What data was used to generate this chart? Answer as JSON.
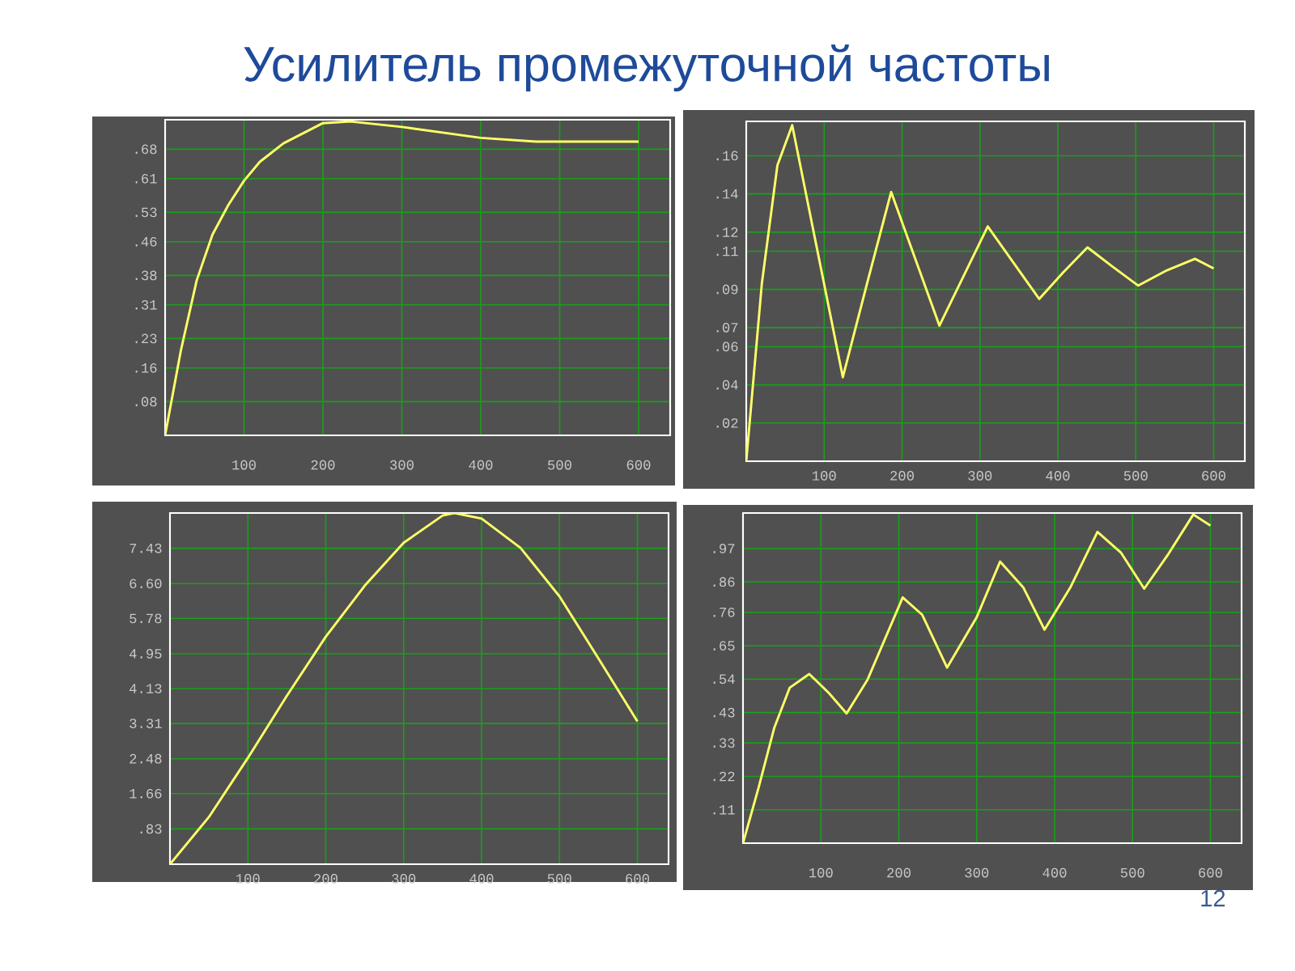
{
  "chart_data": [
    {
      "type": "line",
      "title": "Усилитель промежуточной частоты",
      "color": "#ffff66",
      "grid": true,
      "xlim": [
        0,
        640
      ],
      "ylim": [
        0,
        0.75
      ],
      "xticks": [
        100,
        200,
        300,
        400,
        500,
        600
      ],
      "yticks": [
        {
          "value": 0.08,
          "label": ".08"
        },
        {
          "value": 0.16,
          "label": ".16"
        },
        {
          "value": 0.23,
          "label": ".23"
        },
        {
          "value": 0.31,
          "label": ".31"
        },
        {
          "value": 0.38,
          "label": ".38"
        },
        {
          "value": 0.46,
          "label": ".46"
        },
        {
          "value": 0.53,
          "label": ".53"
        },
        {
          "value": 0.61,
          "label": ".61"
        },
        {
          "value": 0.68,
          "label": ".68"
        }
      ],
      "x": [
        0,
        20,
        40,
        60,
        80,
        100,
        120,
        150,
        200,
        235,
        300,
        400,
        470,
        600
      ],
      "values": [
        0,
        0.202,
        0.368,
        0.477,
        0.547,
        0.605,
        0.65,
        0.694,
        0.742,
        0.746,
        0.733,
        0.707,
        0.698,
        0.698
      ]
    },
    {
      "type": "line",
      "color": "#ffff66",
      "grid": true,
      "xlim": [
        0,
        640
      ],
      "ylim": [
        0,
        0.178
      ],
      "xticks": [
        100,
        200,
        300,
        400,
        500,
        600
      ],
      "yticks": [
        {
          "value": 0.02,
          "label": ".02"
        },
        {
          "value": 0.04,
          "label": ".04"
        },
        {
          "value": 0.06,
          "label": ".06"
        },
        {
          "value": 0.07,
          "label": ".07"
        },
        {
          "value": 0.09,
          "label": ".09"
        },
        {
          "value": 0.11,
          "label": ".11"
        },
        {
          "value": 0.12,
          "label": ".12"
        },
        {
          "value": 0.14,
          "label": ".14"
        },
        {
          "value": 0.16,
          "label": ".16"
        }
      ],
      "x": [
        0,
        20,
        40,
        59,
        90,
        124,
        155,
        186,
        217,
        248,
        279,
        310,
        343,
        376,
        407,
        438,
        470,
        503,
        540,
        576,
        600
      ],
      "values": [
        0,
        0.093,
        0.155,
        0.176,
        0.113,
        0.044,
        0.093,
        0.141,
        0.106,
        0.071,
        0.097,
        0.123,
        0.104,
        0.085,
        0.099,
        0.112,
        0.102,
        0.092,
        0.1,
        0.106,
        0.101
      ]
    },
    {
      "type": "line",
      "color": "#ffff66",
      "grid": true,
      "xlim": [
        0,
        640
      ],
      "ylim": [
        0,
        8.26
      ],
      "xticks": [
        100,
        200,
        300,
        400,
        500,
        600
      ],
      "yticks": [
        {
          "value": 0.83,
          "label": ".83"
        },
        1.66,
        2.48,
        3.31,
        4.13,
        4.95,
        5.78,
        {
          "value": 6.6,
          "label": "6.60"
        },
        7.43
      ],
      "x": [
        0,
        50,
        100,
        150,
        200,
        250,
        300,
        350,
        365,
        400,
        450,
        500,
        550,
        600
      ],
      "values": [
        0,
        1.11,
        2.5,
        3.96,
        5.35,
        6.55,
        7.56,
        8.2,
        8.26,
        8.13,
        7.44,
        6.3,
        4.84,
        3.36
      ]
    },
    {
      "type": "line",
      "color": "#ffff66",
      "grid": true,
      "xlim": [
        0,
        640
      ],
      "ylim": [
        0,
        1.087
      ],
      "xticks": [
        100,
        200,
        300,
        400,
        500,
        600
      ],
      "yticks": [
        {
          "value": 0.11,
          "label": ".11"
        },
        {
          "value": 0.22,
          "label": ".22"
        },
        {
          "value": 0.33,
          "label": ".33"
        },
        {
          "value": 0.43,
          "label": ".43"
        },
        {
          "value": 0.54,
          "label": ".54"
        },
        {
          "value": 0.65,
          "label": ".65"
        },
        {
          "value": 0.76,
          "label": ".76"
        },
        {
          "value": 0.86,
          "label": ".86"
        },
        {
          "value": 0.97,
          "label": ".97"
        }
      ],
      "x": [
        0,
        20,
        40,
        60,
        85,
        110,
        133,
        160,
        205,
        230,
        262,
        300,
        330,
        360,
        387,
        420,
        455,
        485,
        515,
        545,
        578,
        600
      ],
      "values": [
        0,
        0.183,
        0.379,
        0.512,
        0.557,
        0.495,
        0.427,
        0.539,
        0.809,
        0.752,
        0.578,
        0.744,
        0.927,
        0.841,
        0.703,
        0.841,
        1.025,
        0.957,
        0.838,
        0.948,
        1.082,
        1.046
      ],
      "annotations": [
        "12"
      ]
    }
  ]
}
